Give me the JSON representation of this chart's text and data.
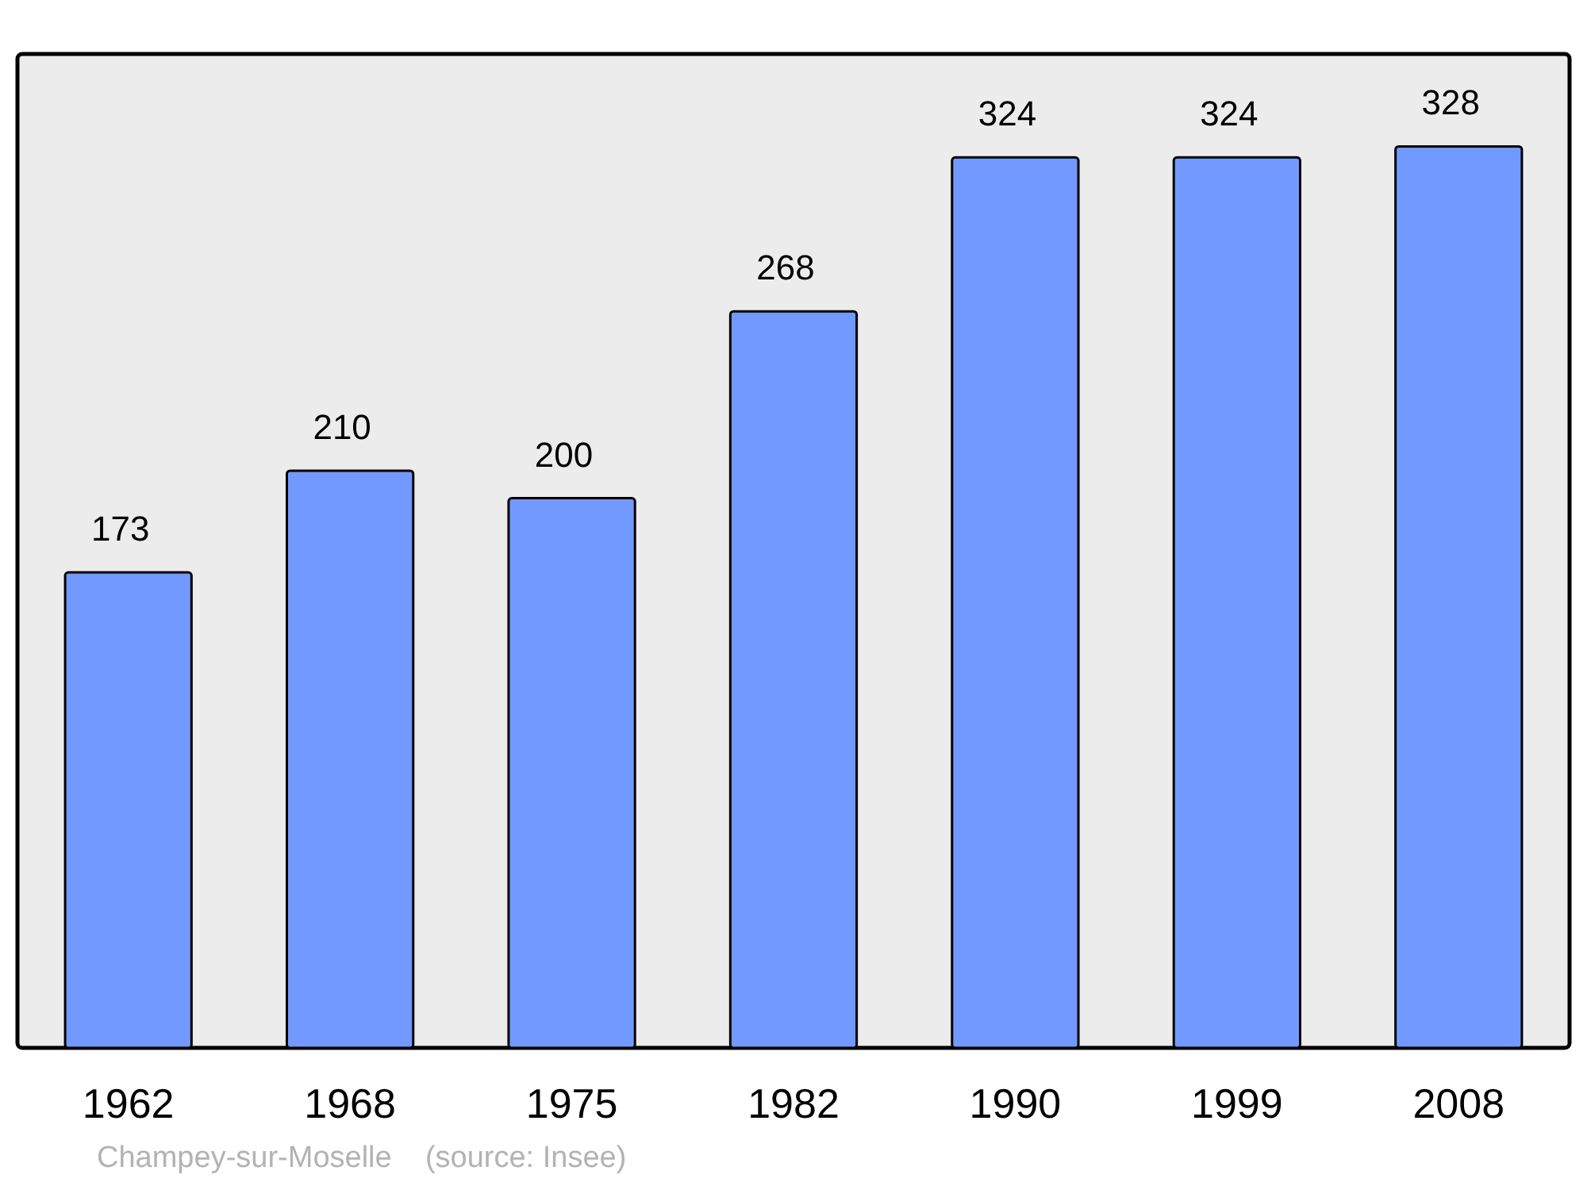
{
  "chart_data": {
    "type": "bar",
    "categories": [
      "1962",
      "1968",
      "1975",
      "1982",
      "1990",
      "1999",
      "2008"
    ],
    "values": [
      173,
      210,
      200,
      268,
      324,
      324,
      328
    ],
    "color": "#7299ff",
    "data_labels": true,
    "annotations": [
      "Champey-sur-Moselle    (source: Insee)"
    ]
  }
}
